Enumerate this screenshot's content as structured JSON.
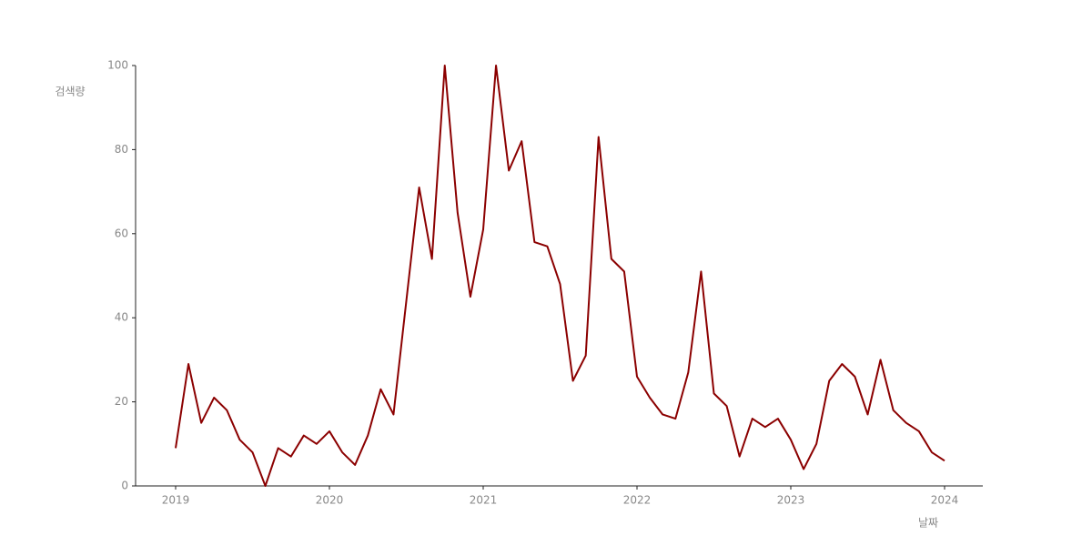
{
  "chart_data": {
    "type": "line",
    "x_label": "날짜",
    "y_label": "검색량",
    "categories": [
      "2019",
      null,
      null,
      null,
      null,
      null,
      null,
      null,
      null,
      null,
      null,
      null,
      "2020",
      null,
      null,
      null,
      null,
      null,
      null,
      null,
      null,
      null,
      null,
      null,
      "2021",
      null,
      null,
      null,
      null,
      null,
      null,
      null,
      null,
      null,
      null,
      null,
      "2022",
      null,
      null,
      null,
      null,
      null,
      null,
      null,
      null,
      null,
      null,
      null,
      "2023",
      null,
      null,
      null,
      null,
      null,
      null,
      null,
      null,
      null,
      null,
      null,
      "2024"
    ],
    "series": [
      {
        "name": "검색량",
        "color": "#8b0000",
        "values": [
          9,
          29,
          15,
          21,
          18,
          11,
          8,
          0,
          9,
          7,
          12,
          10,
          13,
          8,
          5,
          12,
          23,
          17,
          44,
          71,
          54,
          100,
          65,
          45,
          61,
          100,
          75,
          82,
          58,
          57,
          48,
          25,
          31,
          83,
          54,
          51,
          26,
          21,
          17,
          16,
          27,
          51,
          22,
          19,
          7,
          16,
          14,
          16,
          11,
          4,
          10,
          25,
          29,
          26,
          17,
          30,
          18,
          15,
          13,
          8,
          6
        ]
      }
    ],
    "ylim": [
      0,
      100
    ],
    "yticks": [
      0,
      20,
      40,
      60,
      80,
      100
    ],
    "grid": false
  }
}
